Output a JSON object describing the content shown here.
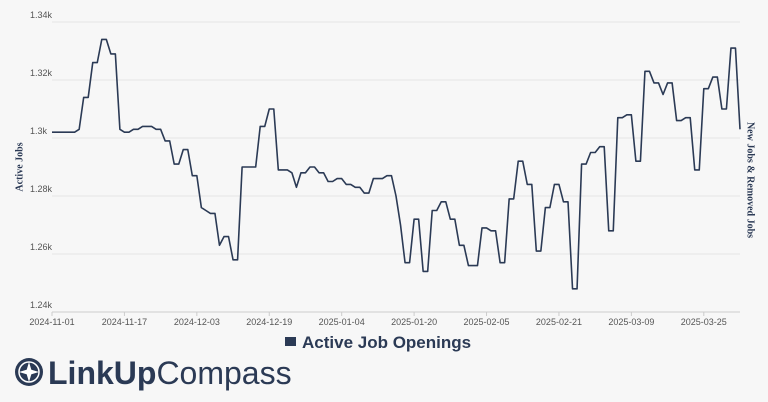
{
  "chart_data": {
    "type": "line",
    "y_axis_title": "Active Jobs",
    "y2_axis_title": "New Jobs & Removed Jobs",
    "logo_text": [
      "LinkUp",
      "Compass"
    ],
    "grid": true,
    "legend": "bottom",
    "xlim": [
      "2024-11-01",
      "2025-04-02"
    ],
    "xticks": [
      "2024-11-01",
      "2024-11-17",
      "2024-12-03",
      "2024-12-19",
      "2025-01-04",
      "2025-01-20",
      "2025-02-05",
      "2025-02-21",
      "2025-03-09",
      "2025-03-25"
    ],
    "ylim": [
      1240,
      1340
    ],
    "yticks": [
      {
        "value": 1240,
        "label": "1.24k"
      },
      {
        "value": 1260,
        "label": "1.26k"
      },
      {
        "value": 1280,
        "label": "1.28k"
      },
      {
        "value": 1300,
        "label": "1.3k"
      },
      {
        "value": 1320,
        "label": "1.32k"
      },
      {
        "value": 1340,
        "label": "1.34k"
      }
    ],
    "x": [
      "2024-11-01",
      "2024-11-02",
      "2024-11-03",
      "2024-11-04",
      "2024-11-05",
      "2024-11-06",
      "2024-11-07",
      "2024-11-08",
      "2024-11-09",
      "2024-11-10",
      "2024-11-11",
      "2024-11-12",
      "2024-11-13",
      "2024-11-14",
      "2024-11-15",
      "2024-11-16",
      "2024-11-17",
      "2024-11-18",
      "2024-11-19",
      "2024-11-20",
      "2024-11-21",
      "2024-11-22",
      "2024-11-23",
      "2024-11-24",
      "2024-11-25",
      "2024-11-26",
      "2024-11-27",
      "2024-11-28",
      "2024-11-29",
      "2024-11-30",
      "2024-12-01",
      "2024-12-02",
      "2024-12-03",
      "2024-12-04",
      "2024-12-05",
      "2024-12-06",
      "2024-12-07",
      "2024-12-08",
      "2024-12-09",
      "2024-12-10",
      "2024-12-11",
      "2024-12-12",
      "2024-12-13",
      "2024-12-14",
      "2024-12-15",
      "2024-12-16",
      "2024-12-17",
      "2024-12-18",
      "2024-12-19",
      "2024-12-20",
      "2024-12-21",
      "2024-12-22",
      "2024-12-23",
      "2024-12-24",
      "2024-12-25",
      "2024-12-26",
      "2024-12-27",
      "2024-12-28",
      "2024-12-29",
      "2024-12-30",
      "2024-12-31",
      "2025-01-01",
      "2025-01-02",
      "2025-01-03",
      "2025-01-04",
      "2025-01-05",
      "2025-01-06",
      "2025-01-07",
      "2025-01-08",
      "2025-01-09",
      "2025-01-10",
      "2025-01-11",
      "2025-01-12",
      "2025-01-13",
      "2025-01-14",
      "2025-01-15",
      "2025-01-16",
      "2025-01-17",
      "2025-01-18",
      "2025-01-19",
      "2025-01-20",
      "2025-01-21",
      "2025-01-22",
      "2025-01-23",
      "2025-01-24",
      "2025-01-25",
      "2025-01-26",
      "2025-01-27",
      "2025-01-28",
      "2025-01-29",
      "2025-01-30",
      "2025-01-31",
      "2025-02-01",
      "2025-02-02",
      "2025-02-03",
      "2025-02-04",
      "2025-02-05",
      "2025-02-06",
      "2025-02-07",
      "2025-02-08",
      "2025-02-09",
      "2025-02-10",
      "2025-02-11",
      "2025-02-12",
      "2025-02-13",
      "2025-02-14",
      "2025-02-15",
      "2025-02-16",
      "2025-02-17",
      "2025-02-18",
      "2025-02-19",
      "2025-02-20",
      "2025-02-21",
      "2025-02-22",
      "2025-02-23",
      "2025-02-24",
      "2025-02-25",
      "2025-02-26",
      "2025-02-27",
      "2025-02-28",
      "2025-03-01",
      "2025-03-02",
      "2025-03-03",
      "2025-03-04",
      "2025-03-05",
      "2025-03-06",
      "2025-03-07",
      "2025-03-08",
      "2025-03-09",
      "2025-03-10",
      "2025-03-11",
      "2025-03-12",
      "2025-03-13",
      "2025-03-14",
      "2025-03-15",
      "2025-03-16",
      "2025-03-17",
      "2025-03-18",
      "2025-03-19",
      "2025-03-20",
      "2025-03-21",
      "2025-03-22",
      "2025-03-23",
      "2025-03-24",
      "2025-03-25",
      "2025-03-26",
      "2025-03-27",
      "2025-03-28",
      "2025-03-29",
      "2025-03-30",
      "2025-03-31",
      "2025-04-01",
      "2025-04-02"
    ],
    "series": [
      {
        "name": "Active Job Openings",
        "color": "#2b3a55",
        "values": [
          1302,
          1302,
          1302,
          1302,
          1302,
          1302,
          1303,
          1314,
          1314,
          1326,
          1326,
          1334,
          1334,
          1329,
          1329,
          1303,
          1302,
          1302,
          1303,
          1303,
          1304,
          1304,
          1304,
          1303,
          1303,
          1299,
          1299,
          1291,
          1291,
          1296,
          1296,
          1287,
          1287,
          1276,
          1275,
          1274,
          1274,
          1263,
          1266,
          1266,
          1258,
          1258,
          1290,
          1290,
          1290,
          1290,
          1304,
          1304,
          1310,
          1310,
          1289,
          1289,
          1289,
          1288,
          1283,
          1288,
          1288,
          1290,
          1290,
          1288,
          1288,
          1285,
          1285,
          1286,
          1286,
          1284,
          1284,
          1283,
          1283,
          1281,
          1281,
          1286,
          1286,
          1286,
          1287,
          1287,
          1280,
          1270,
          1257,
          1257,
          1272,
          1272,
          1254,
          1254,
          1275,
          1275,
          1278,
          1278,
          1272,
          1272,
          1263,
          1263,
          1256,
          1256,
          1256,
          1269,
          1269,
          1268,
          1268,
          1257,
          1257,
          1279,
          1279,
          1292,
          1292,
          1284,
          1284,
          1261,
          1261,
          1276,
          1276,
          1284,
          1284,
          1278,
          1278,
          1248,
          1248,
          1291,
          1291,
          1295,
          1295,
          1297,
          1297,
          1268,
          1268,
          1307,
          1307,
          1308,
          1308,
          1292,
          1292,
          1323,
          1323,
          1319,
          1319,
          1315,
          1319,
          1319,
          1306,
          1306,
          1307,
          1307,
          1289,
          1289,
          1317,
          1317,
          1321,
          1321,
          1310,
          1310,
          1331,
          1331,
          1303
        ]
      }
    ]
  }
}
